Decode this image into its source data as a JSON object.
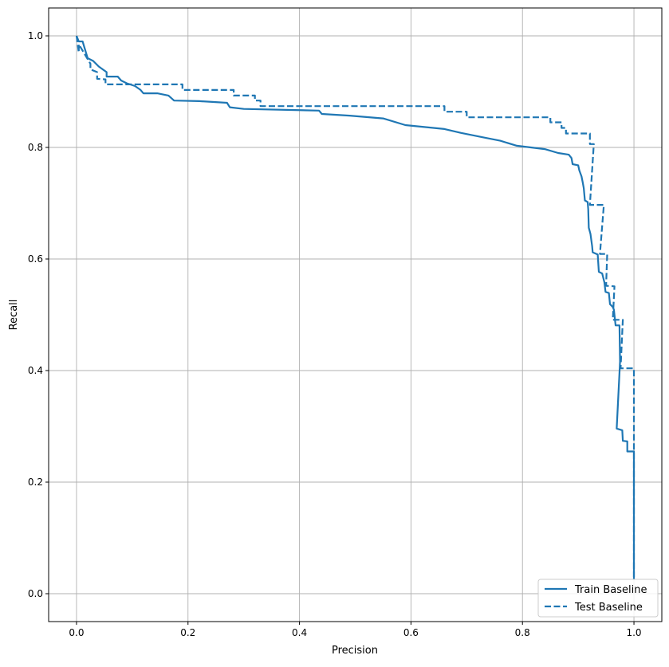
{
  "chart_data": {
    "type": "line",
    "title": "",
    "xlabel": "Precision",
    "ylabel": "Recall",
    "xlim": [
      -0.05,
      1.05
    ],
    "ylim": [
      -0.05,
      1.05
    ],
    "xticks": [
      "0.0",
      "0.2",
      "0.4",
      "0.6",
      "0.8",
      "1.0"
    ],
    "yticks": [
      "0.0",
      "0.2",
      "0.4",
      "0.6",
      "0.8",
      "1.0"
    ],
    "grid": true,
    "legend_position": "lower-right",
    "color": "#1f77b4",
    "series": [
      {
        "name": "Train Baseline",
        "style": "solid",
        "x": [
          0,
          0.004,
          0.011,
          0.014,
          0.02,
          0.03,
          0.04,
          0.054,
          0.054,
          0.074,
          0.08,
          0.09,
          0.105,
          0.115,
          0.12,
          0.145,
          0.165,
          0.175,
          0.22,
          0.27,
          0.275,
          0.3,
          0.435,
          0.44,
          0.49,
          0.55,
          0.59,
          0.66,
          0.69,
          0.73,
          0.76,
          0.79,
          0.84,
          0.864,
          0.883,
          0.888,
          0.89,
          0.9,
          0.902,
          0.906,
          0.908,
          0.91,
          0.912,
          0.917,
          0.918,
          0.919,
          0.922,
          0.925,
          0.926,
          0.935,
          0.937,
          0.943,
          0.947,
          0.949,
          0.955,
          0.957,
          0.962,
          0.964,
          0.967,
          0.974,
          0.975,
          0.969,
          0.979,
          0.98,
          0.988,
          0.988,
          1.0,
          1.0,
          1.0
        ],
        "y": [
          1.0,
          0.99,
          0.99,
          0.98,
          0.96,
          0.955,
          0.945,
          0.935,
          0.927,
          0.927,
          0.92,
          0.915,
          0.91,
          0.903,
          0.897,
          0.897,
          0.893,
          0.884,
          0.883,
          0.88,
          0.872,
          0.869,
          0.866,
          0.86,
          0.857,
          0.852,
          0.84,
          0.833,
          0.826,
          0.818,
          0.812,
          0.803,
          0.797,
          0.79,
          0.787,
          0.781,
          0.77,
          0.768,
          0.759,
          0.748,
          0.738,
          0.727,
          0.705,
          0.702,
          0.689,
          0.656,
          0.645,
          0.623,
          0.612,
          0.608,
          0.577,
          0.574,
          0.558,
          0.541,
          0.539,
          0.519,
          0.514,
          0.509,
          0.481,
          0.481,
          0.416,
          0.296,
          0.293,
          0.274,
          0.273,
          0.255,
          0.255,
          0.034,
          0.025
        ]
      },
      {
        "name": "Test Baseline",
        "style": "dashed",
        "x": [
          0,
          0.004,
          0.004,
          0.025,
          0.025,
          0.037,
          0.037,
          0.052,
          0.052,
          0.19,
          0.19,
          0.282,
          0.282,
          0.32,
          0.32,
          0.33,
          0.33,
          0.66,
          0.66,
          0.7,
          0.7,
          0.85,
          0.85,
          0.87,
          0.87,
          0.878,
          0.878,
          0.921,
          0.921,
          0.928,
          0.921,
          0.946,
          0.939,
          0.952,
          0.95,
          0.965,
          0.962,
          0.98,
          0.976,
          1.0,
          1.0
        ],
        "y": [
          1.0,
          0.97,
          0.985,
          0.95,
          0.94,
          0.935,
          0.923,
          0.922,
          0.913,
          0.913,
          0.903,
          0.903,
          0.893,
          0.893,
          0.884,
          0.884,
          0.874,
          0.874,
          0.864,
          0.864,
          0.854,
          0.854,
          0.845,
          0.845,
          0.835,
          0.835,
          0.825,
          0.825,
          0.806,
          0.806,
          0.697,
          0.697,
          0.609,
          0.609,
          0.552,
          0.551,
          0.491,
          0.491,
          0.404,
          0.404,
          0.03
        ]
      }
    ]
  }
}
